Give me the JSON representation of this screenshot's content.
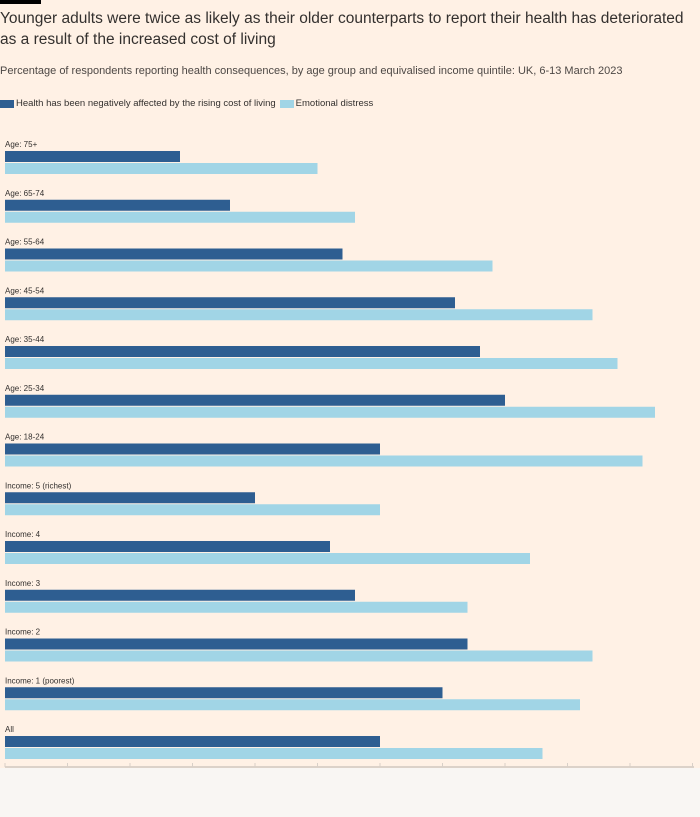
{
  "header": {
    "title": "Younger adults were twice as likely as their older counterparts to report their health has deteriorated as a result of the increased cost of living",
    "subtitle": "Percentage of respondents reporting health consequences, by age group and equivalised income quintile: UK, 6-13 March 2023"
  },
  "chart_data": {
    "type": "bar",
    "orientation": "horizontal",
    "categories": [
      "Age: 75+",
      "Age: 65-74",
      "Age: 55-64",
      "Age: 45-54",
      "Age: 35-44",
      "Age: 25-34",
      "Age: 18-24",
      "Income: 5 (richest)",
      "Income: 4",
      "Income: 3",
      "Income: 2",
      "Income: 1 (poorest)",
      "All"
    ],
    "series": [
      {
        "name": "Health has been negatively affected by the rising cost of living",
        "color": "#2e5e91",
        "values": [
          14,
          18,
          27,
          36,
          38,
          40,
          30,
          20,
          26,
          28,
          37,
          35,
          30
        ]
      },
      {
        "name": "Emotional distress",
        "color": "#a1d5e6",
        "values": [
          25,
          28,
          39,
          47,
          49,
          52,
          51,
          30,
          42,
          37,
          47,
          46,
          43
        ]
      }
    ],
    "xlim": [
      0,
      55
    ],
    "tick_step": 5,
    "legend_position": "top-left",
    "grid": false
  }
}
